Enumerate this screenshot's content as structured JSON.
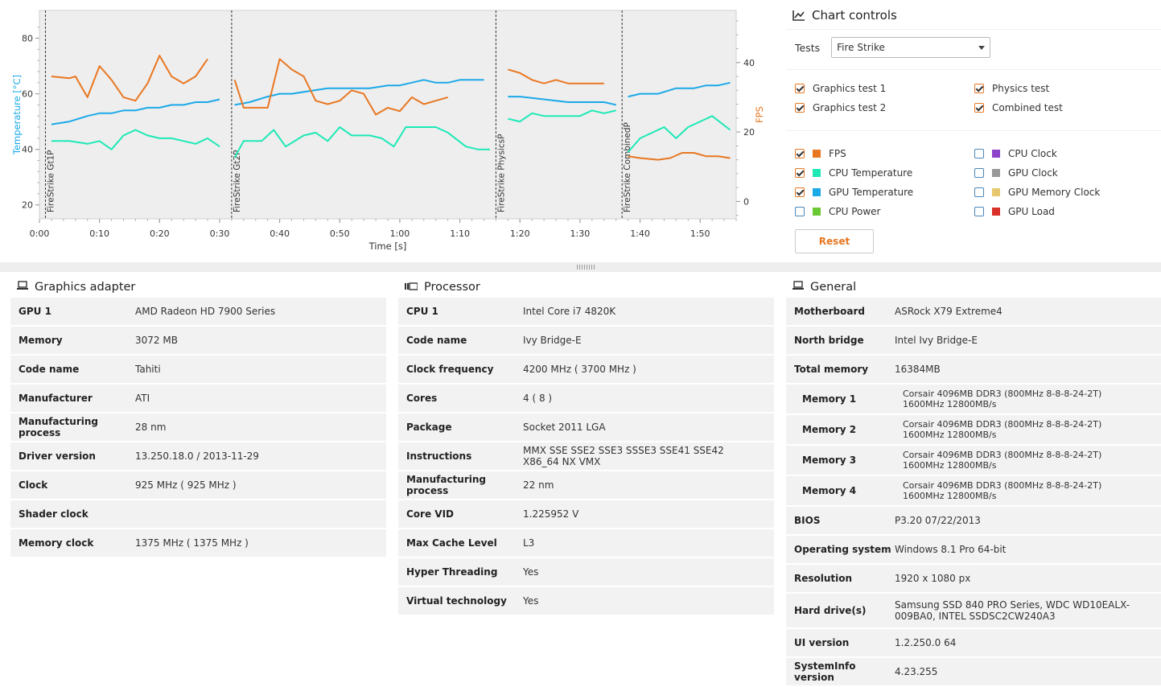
{
  "chart_controls": {
    "title": "Chart controls",
    "tests_label": "Tests",
    "tests_value": "Fire Strike",
    "tests": [
      {
        "label": "Graphics test 1",
        "checked": true
      },
      {
        "label": "Physics test",
        "checked": true
      },
      {
        "label": "Graphics test 2",
        "checked": true
      },
      {
        "label": "Combined test",
        "checked": true
      }
    ],
    "series_toggles": [
      {
        "label": "FPS",
        "checked": true,
        "color": "#e87722"
      },
      {
        "label": "CPU Clock",
        "checked": false,
        "color": "#8e44c8"
      },
      {
        "label": "CPU Temperature",
        "checked": true,
        "color": "#1de9b6"
      },
      {
        "label": "GPU Clock",
        "checked": false,
        "color": "#999999"
      },
      {
        "label": "GPU Temperature",
        "checked": true,
        "color": "#1ba9e8"
      },
      {
        "label": "GPU Memory Clock",
        "checked": false,
        "color": "#e5c86e"
      },
      {
        "label": "CPU Power",
        "checked": false,
        "color": "#6bc934"
      },
      {
        "label": "GPU Load",
        "checked": false,
        "color": "#d9302a"
      }
    ],
    "reset_label": "Reset"
  },
  "chart_data": {
    "type": "line",
    "xlabel": "Time [s]",
    "ylabel_left": "Temperature [°C]",
    "ylabel_right": "FPS",
    "x_ticks": [
      "0:00",
      "0:10",
      "0:20",
      "0:30",
      "0:40",
      "0:50",
      "1:00",
      "1:10",
      "1:20",
      "1:30",
      "1:40",
      "1:50"
    ],
    "x_tick_values": [
      0,
      10,
      20,
      30,
      40,
      50,
      60,
      70,
      80,
      90,
      100,
      110
    ],
    "xlim": [
      0,
      116
    ],
    "y_left_ticks": [
      20,
      40,
      60,
      80
    ],
    "y_left_lim": [
      15,
      90
    ],
    "y_right_ticks": [
      0,
      20,
      40,
      60
    ],
    "y_right_lim": [
      -5,
      55
    ],
    "grid": false,
    "markers": [
      {
        "label": "FireStrike Gt1P",
        "x": 1
      },
      {
        "label": "FireStrike Gt2P",
        "x": 32
      },
      {
        "label": "FireStrike PhysicsP",
        "x": 76
      },
      {
        "label": "FireStrike CombinedP",
        "x": 97
      }
    ],
    "series": [
      {
        "name": "GPU Temperature",
        "axis": "left",
        "color": "#1ba9e8",
        "segments": [
          [
            [
              2,
              49
            ],
            [
              5,
              50
            ],
            [
              8,
              52
            ],
            [
              10,
              53
            ],
            [
              12,
              53
            ],
            [
              14,
              54
            ],
            [
              16,
              54
            ],
            [
              18,
              55
            ],
            [
              20,
              55
            ],
            [
              22,
              56
            ],
            [
              24,
              56
            ],
            [
              26,
              57
            ],
            [
              28,
              57
            ],
            [
              30,
              58
            ]
          ],
          [
            [
              32.5,
              56
            ],
            [
              35,
              57
            ],
            [
              38,
              59
            ],
            [
              40,
              60
            ],
            [
              42,
              60
            ],
            [
              45,
              61
            ],
            [
              48,
              62
            ],
            [
              52,
              62
            ],
            [
              55,
              62
            ],
            [
              58,
              63
            ],
            [
              60,
              63
            ],
            [
              64,
              65
            ],
            [
              66,
              64
            ],
            [
              68,
              64
            ],
            [
              70,
              65
            ],
            [
              74,
              65
            ]
          ],
          [
            [
              78,
              59
            ],
            [
              80,
              59
            ],
            [
              84,
              58
            ],
            [
              88,
              57
            ],
            [
              90,
              57
            ],
            [
              94,
              57
            ],
            [
              96,
              56
            ]
          ],
          [
            [
              98,
              59
            ],
            [
              100,
              60
            ],
            [
              103,
              60
            ],
            [
              106,
              62
            ],
            [
              109,
              62
            ],
            [
              111,
              63
            ],
            [
              113,
              63
            ],
            [
              115,
              64
            ]
          ]
        ]
      },
      {
        "name": "CPU Temperature",
        "axis": "left",
        "color": "#1de9b6",
        "segments": [
          [
            [
              2,
              43
            ],
            [
              5,
              43
            ],
            [
              8,
              42
            ],
            [
              10,
              43
            ],
            [
              12,
              40
            ],
            [
              14,
              45
            ],
            [
              16,
              47
            ],
            [
              18,
              45
            ],
            [
              20,
              44
            ],
            [
              22,
              44
            ],
            [
              24,
              43
            ],
            [
              26,
              42
            ],
            [
              28,
              44
            ],
            [
              30,
              41
            ]
          ],
          [
            [
              32.5,
              37
            ],
            [
              34,
              43
            ],
            [
              37,
              43
            ],
            [
              39,
              47
            ],
            [
              41,
              41
            ],
            [
              44,
              45
            ],
            [
              46,
              46
            ],
            [
              48,
              43
            ],
            [
              50,
              48
            ],
            [
              52,
              45
            ],
            [
              55,
              45
            ],
            [
              57,
              44
            ],
            [
              59,
              41
            ],
            [
              61,
              48
            ],
            [
              63,
              48
            ],
            [
              66,
              48
            ],
            [
              68,
              46
            ],
            [
              71,
              41
            ],
            [
              73,
              40
            ],
            [
              75,
              40
            ]
          ],
          [
            [
              78,
              51
            ],
            [
              80,
              50
            ],
            [
              82,
              53
            ],
            [
              84,
              52
            ],
            [
              88,
              52
            ],
            [
              90,
              52
            ],
            [
              92,
              54
            ],
            [
              94,
              53
            ],
            [
              96,
              54
            ]
          ],
          [
            [
              98,
              39
            ],
            [
              100,
              44
            ],
            [
              104,
              48
            ],
            [
              106,
              44
            ],
            [
              108,
              48
            ],
            [
              110,
              50
            ],
            [
              112,
              52
            ],
            [
              115,
              47
            ]
          ]
        ]
      },
      {
        "name": "FPS",
        "axis": "right",
        "color": "#e87722",
        "segments": [
          [
            [
              2,
              36
            ],
            [
              5,
              35.5
            ],
            [
              6,
              36
            ],
            [
              8,
              30
            ],
            [
              10,
              39
            ],
            [
              12,
              35
            ],
            [
              14,
              30
            ],
            [
              16,
              29
            ],
            [
              18,
              34
            ],
            [
              20,
              42
            ],
            [
              22,
              36
            ],
            [
              24,
              34
            ],
            [
              26,
              36
            ],
            [
              28,
              41
            ]
          ],
          [
            [
              32.5,
              35
            ],
            [
              34,
              27
            ],
            [
              36,
              27
            ],
            [
              38,
              27
            ],
            [
              40,
              41
            ],
            [
              42,
              38
            ],
            [
              44,
              36
            ],
            [
              46,
              29
            ],
            [
              48,
              28
            ],
            [
              50,
              29
            ],
            [
              52,
              32
            ],
            [
              54,
              31
            ],
            [
              56,
              25
            ],
            [
              58,
              27
            ],
            [
              60,
              26
            ],
            [
              62,
              30
            ],
            [
              64,
              28
            ],
            [
              66,
              29
            ],
            [
              68,
              30
            ]
          ],
          [
            [
              78,
              38
            ],
            [
              80,
              37
            ],
            [
              82,
              35
            ],
            [
              84,
              34
            ],
            [
              86,
              35
            ],
            [
              88,
              34
            ],
            [
              90,
              34
            ],
            [
              92,
              34
            ],
            [
              94,
              34
            ]
          ],
          [
            [
              98,
              13
            ],
            [
              100,
              12.5
            ],
            [
              103,
              12
            ],
            [
              105,
              12.5
            ],
            [
              107,
              14
            ],
            [
              109,
              14
            ],
            [
              111,
              13
            ],
            [
              113,
              13
            ],
            [
              115,
              12.5
            ]
          ]
        ]
      }
    ]
  },
  "panels": {
    "graphics": {
      "title": "Graphics adapter",
      "rows": [
        {
          "k": "GPU 1",
          "v": "AMD Radeon HD 7900 Series"
        },
        {
          "k": "Memory",
          "v": "3072 MB"
        },
        {
          "k": "Code name",
          "v": "Tahiti"
        },
        {
          "k": "Manufacturer",
          "v": "ATI"
        },
        {
          "k": "Manufacturing process",
          "v": "28 nm"
        },
        {
          "k": "Driver version",
          "v": "13.250.18.0 / 2013-11-29"
        },
        {
          "k": "Clock",
          "v": "925 MHz ( 925 MHz )"
        },
        {
          "k": "Shader clock",
          "v": ""
        },
        {
          "k": "Memory clock",
          "v": "1375 MHz ( 1375 MHz )"
        }
      ]
    },
    "processor": {
      "title": "Processor",
      "rows": [
        {
          "k": "CPU 1",
          "v": "Intel Core i7 4820K"
        },
        {
          "k": "Code name",
          "v": "Ivy Bridge-E"
        },
        {
          "k": "Clock frequency",
          "v": "4200 MHz ( 3700 MHz )"
        },
        {
          "k": "Cores",
          "v": "4 ( 8 )"
        },
        {
          "k": "Package",
          "v": "Socket 2011 LGA"
        },
        {
          "k": "Instructions",
          "v": "MMX SSE SSE2 SSE3 SSSE3 SSE41 SSE42 X86_64 NX VMX"
        },
        {
          "k": "Manufacturing process",
          "v": "22 nm"
        },
        {
          "k": "Core VID",
          "v": "1.225952 V"
        },
        {
          "k": "Max Cache Level",
          "v": "L3"
        },
        {
          "k": "Hyper Threading",
          "v": "Yes"
        },
        {
          "k": "Virtual technology",
          "v": "Yes"
        }
      ]
    },
    "general": {
      "title": "General",
      "rows": [
        {
          "k": "Motherboard",
          "v": "ASRock X79 Extreme4"
        },
        {
          "k": "North bridge",
          "v": "Intel Ivy Bridge-E"
        },
        {
          "k": "Total memory",
          "v": "16384MB"
        },
        {
          "k": "Memory 1",
          "v": "Corsair 4096MB  DDR3 (800MHz 8-8-8-24-2T) 1600MHz 12800MB/s",
          "sub": true
        },
        {
          "k": "Memory 2",
          "v": "Corsair 4096MB  DDR3 (800MHz 8-8-8-24-2T) 1600MHz 12800MB/s",
          "sub": true
        },
        {
          "k": "Memory 3",
          "v": "Corsair 4096MB  DDR3 (800MHz 8-8-8-24-2T) 1600MHz 12800MB/s",
          "sub": true
        },
        {
          "k": "Memory 4",
          "v": "Corsair 4096MB  DDR3 (800MHz 8-8-8-24-2T) 1600MHz 12800MB/s",
          "sub": true
        },
        {
          "k": "BIOS",
          "v": "P3.20 07/22/2013"
        },
        {
          "k": "Operating system",
          "v": "Windows 8.1 Pro 64-bit"
        },
        {
          "k": "Resolution",
          "v": "1920 x 1080 px"
        },
        {
          "k": "Hard drive(s)",
          "v": "Samsung SSD 840 PRO Series, WDC WD10EALX-009BA0, INTEL SSDSC2CW240A3"
        },
        {
          "k": "UI version",
          "v": "1.2.250.0 64"
        },
        {
          "k": "SystemInfo version",
          "v": "4.23.255"
        }
      ]
    }
  }
}
